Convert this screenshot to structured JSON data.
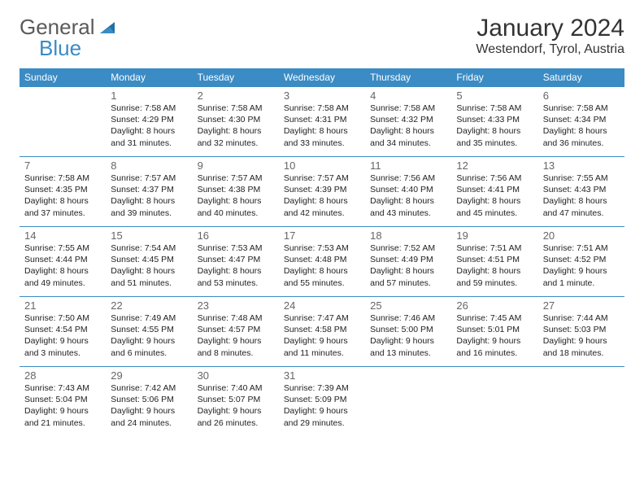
{
  "brand": {
    "part1": "General",
    "part2": "Blue"
  },
  "title": "January 2024",
  "location": "Westendorf, Tyrol, Austria",
  "colors": {
    "header_bg": "#3b8bc4",
    "header_text": "#ffffff",
    "border": "#3b8bc4",
    "logo_gray": "#5a5a5a",
    "logo_blue": "#3b8bc4",
    "daynum": "#666666",
    "body_text": "#222222",
    "background": "#ffffff"
  },
  "weekdays": [
    "Sunday",
    "Monday",
    "Tuesday",
    "Wednesday",
    "Thursday",
    "Friday",
    "Saturday"
  ],
  "weeks": [
    [
      {
        "empty": true
      },
      {
        "n": "1",
        "sr": "Sunrise: 7:58 AM",
        "ss": "Sunset: 4:29 PM",
        "d1": "Daylight: 8 hours",
        "d2": "and 31 minutes."
      },
      {
        "n": "2",
        "sr": "Sunrise: 7:58 AM",
        "ss": "Sunset: 4:30 PM",
        "d1": "Daylight: 8 hours",
        "d2": "and 32 minutes."
      },
      {
        "n": "3",
        "sr": "Sunrise: 7:58 AM",
        "ss": "Sunset: 4:31 PM",
        "d1": "Daylight: 8 hours",
        "d2": "and 33 minutes."
      },
      {
        "n": "4",
        "sr": "Sunrise: 7:58 AM",
        "ss": "Sunset: 4:32 PM",
        "d1": "Daylight: 8 hours",
        "d2": "and 34 minutes."
      },
      {
        "n": "5",
        "sr": "Sunrise: 7:58 AM",
        "ss": "Sunset: 4:33 PM",
        "d1": "Daylight: 8 hours",
        "d2": "and 35 minutes."
      },
      {
        "n": "6",
        "sr": "Sunrise: 7:58 AM",
        "ss": "Sunset: 4:34 PM",
        "d1": "Daylight: 8 hours",
        "d2": "and 36 minutes."
      }
    ],
    [
      {
        "n": "7",
        "sr": "Sunrise: 7:58 AM",
        "ss": "Sunset: 4:35 PM",
        "d1": "Daylight: 8 hours",
        "d2": "and 37 minutes."
      },
      {
        "n": "8",
        "sr": "Sunrise: 7:57 AM",
        "ss": "Sunset: 4:37 PM",
        "d1": "Daylight: 8 hours",
        "d2": "and 39 minutes."
      },
      {
        "n": "9",
        "sr": "Sunrise: 7:57 AM",
        "ss": "Sunset: 4:38 PM",
        "d1": "Daylight: 8 hours",
        "d2": "and 40 minutes."
      },
      {
        "n": "10",
        "sr": "Sunrise: 7:57 AM",
        "ss": "Sunset: 4:39 PM",
        "d1": "Daylight: 8 hours",
        "d2": "and 42 minutes."
      },
      {
        "n": "11",
        "sr": "Sunrise: 7:56 AM",
        "ss": "Sunset: 4:40 PM",
        "d1": "Daylight: 8 hours",
        "d2": "and 43 minutes."
      },
      {
        "n": "12",
        "sr": "Sunrise: 7:56 AM",
        "ss": "Sunset: 4:41 PM",
        "d1": "Daylight: 8 hours",
        "d2": "and 45 minutes."
      },
      {
        "n": "13",
        "sr": "Sunrise: 7:55 AM",
        "ss": "Sunset: 4:43 PM",
        "d1": "Daylight: 8 hours",
        "d2": "and 47 minutes."
      }
    ],
    [
      {
        "n": "14",
        "sr": "Sunrise: 7:55 AM",
        "ss": "Sunset: 4:44 PM",
        "d1": "Daylight: 8 hours",
        "d2": "and 49 minutes."
      },
      {
        "n": "15",
        "sr": "Sunrise: 7:54 AM",
        "ss": "Sunset: 4:45 PM",
        "d1": "Daylight: 8 hours",
        "d2": "and 51 minutes."
      },
      {
        "n": "16",
        "sr": "Sunrise: 7:53 AM",
        "ss": "Sunset: 4:47 PM",
        "d1": "Daylight: 8 hours",
        "d2": "and 53 minutes."
      },
      {
        "n": "17",
        "sr": "Sunrise: 7:53 AM",
        "ss": "Sunset: 4:48 PM",
        "d1": "Daylight: 8 hours",
        "d2": "and 55 minutes."
      },
      {
        "n": "18",
        "sr": "Sunrise: 7:52 AM",
        "ss": "Sunset: 4:49 PM",
        "d1": "Daylight: 8 hours",
        "d2": "and 57 minutes."
      },
      {
        "n": "19",
        "sr": "Sunrise: 7:51 AM",
        "ss": "Sunset: 4:51 PM",
        "d1": "Daylight: 8 hours",
        "d2": "and 59 minutes."
      },
      {
        "n": "20",
        "sr": "Sunrise: 7:51 AM",
        "ss": "Sunset: 4:52 PM",
        "d1": "Daylight: 9 hours",
        "d2": "and 1 minute."
      }
    ],
    [
      {
        "n": "21",
        "sr": "Sunrise: 7:50 AM",
        "ss": "Sunset: 4:54 PM",
        "d1": "Daylight: 9 hours",
        "d2": "and 3 minutes."
      },
      {
        "n": "22",
        "sr": "Sunrise: 7:49 AM",
        "ss": "Sunset: 4:55 PM",
        "d1": "Daylight: 9 hours",
        "d2": "and 6 minutes."
      },
      {
        "n": "23",
        "sr": "Sunrise: 7:48 AM",
        "ss": "Sunset: 4:57 PM",
        "d1": "Daylight: 9 hours",
        "d2": "and 8 minutes."
      },
      {
        "n": "24",
        "sr": "Sunrise: 7:47 AM",
        "ss": "Sunset: 4:58 PM",
        "d1": "Daylight: 9 hours",
        "d2": "and 11 minutes."
      },
      {
        "n": "25",
        "sr": "Sunrise: 7:46 AM",
        "ss": "Sunset: 5:00 PM",
        "d1": "Daylight: 9 hours",
        "d2": "and 13 minutes."
      },
      {
        "n": "26",
        "sr": "Sunrise: 7:45 AM",
        "ss": "Sunset: 5:01 PM",
        "d1": "Daylight: 9 hours",
        "d2": "and 16 minutes."
      },
      {
        "n": "27",
        "sr": "Sunrise: 7:44 AM",
        "ss": "Sunset: 5:03 PM",
        "d1": "Daylight: 9 hours",
        "d2": "and 18 minutes."
      }
    ],
    [
      {
        "n": "28",
        "sr": "Sunrise: 7:43 AM",
        "ss": "Sunset: 5:04 PM",
        "d1": "Daylight: 9 hours",
        "d2": "and 21 minutes."
      },
      {
        "n": "29",
        "sr": "Sunrise: 7:42 AM",
        "ss": "Sunset: 5:06 PM",
        "d1": "Daylight: 9 hours",
        "d2": "and 24 minutes."
      },
      {
        "n": "30",
        "sr": "Sunrise: 7:40 AM",
        "ss": "Sunset: 5:07 PM",
        "d1": "Daylight: 9 hours",
        "d2": "and 26 minutes."
      },
      {
        "n": "31",
        "sr": "Sunrise: 7:39 AM",
        "ss": "Sunset: 5:09 PM",
        "d1": "Daylight: 9 hours",
        "d2": "and 29 minutes."
      },
      {
        "empty": true
      },
      {
        "empty": true
      },
      {
        "empty": true
      }
    ]
  ]
}
